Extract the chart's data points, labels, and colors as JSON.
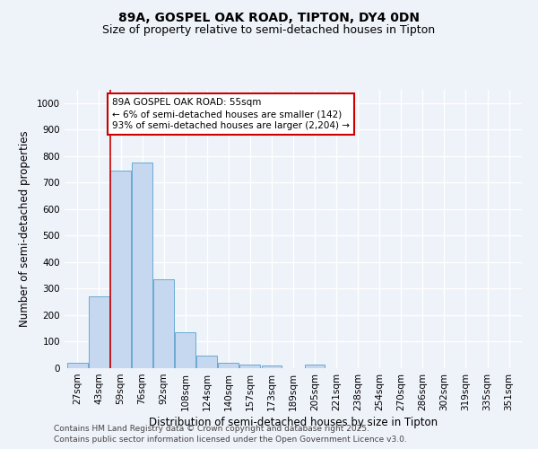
{
  "title1": "89A, GOSPEL OAK ROAD, TIPTON, DY4 0DN",
  "title2": "Size of property relative to semi-detached houses in Tipton",
  "xlabel": "Distribution of semi-detached houses by size in Tipton",
  "ylabel": "Number of semi-detached properties",
  "categories": [
    "27sqm",
    "43sqm",
    "59sqm",
    "76sqm",
    "92sqm",
    "108sqm",
    "124sqm",
    "140sqm",
    "157sqm",
    "173sqm",
    "189sqm",
    "205sqm",
    "221sqm",
    "238sqm",
    "254sqm",
    "270sqm",
    "286sqm",
    "302sqm",
    "319sqm",
    "335sqm",
    "351sqm"
  ],
  "values": [
    20,
    270,
    745,
    775,
    335,
    135,
    47,
    22,
    13,
    11,
    0,
    12,
    0,
    0,
    0,
    0,
    0,
    0,
    0,
    0,
    0
  ],
  "bar_color": "#c5d8f0",
  "bar_edge_color": "#6aaad4",
  "red_line_x": 1.5,
  "annotation_text": "89A GOSPEL OAK ROAD: 55sqm\n← 6% of semi-detached houses are smaller (142)\n93% of semi-detached houses are larger (2,204) →",
  "annotation_box_color": "#ffffff",
  "annotation_border_color": "#cc0000",
  "ylim": [
    0,
    1050
  ],
  "yticks": [
    0,
    100,
    200,
    300,
    400,
    500,
    600,
    700,
    800,
    900,
    1000
  ],
  "footer1": "Contains HM Land Registry data © Crown copyright and database right 2025.",
  "footer2": "Contains public sector information licensed under the Open Government Licence v3.0.",
  "bg_color": "#eef2f9",
  "grid_color": "#ffffff",
  "title_fontsize": 10,
  "subtitle_fontsize": 9,
  "axis_label_fontsize": 8.5,
  "tick_fontsize": 7.5,
  "annotation_fontsize": 7.5,
  "footer_fontsize": 6.5
}
